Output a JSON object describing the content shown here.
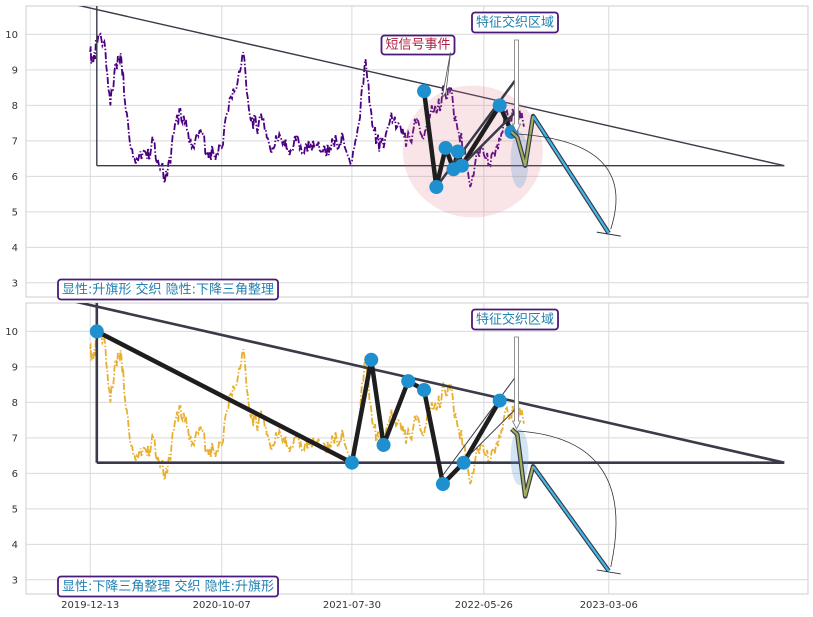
{
  "chart_data": [
    {
      "type": "line",
      "title": "",
      "ylim": [
        2.6,
        10.8
      ],
      "yticks": [
        3,
        4,
        5,
        6,
        7,
        8,
        9,
        10
      ],
      "series": [
        {
          "style": "dash-dot",
          "color": "#4b0082",
          "x": [
            "2019-12-13",
            "2019-12-20",
            "2020-01-01",
            "2020-01-14",
            "2020-01-28",
            "2020-02-10",
            "2020-02-22",
            "2020-03-05",
            "2020-03-20",
            "2020-04-05",
            "2020-04-20",
            "2020-05-05",
            "2020-05-20",
            "2020-06-05",
            "2020-06-20",
            "2020-07-05",
            "2020-07-20",
            "2020-08-05",
            "2020-08-20",
            "2020-09-05",
            "2020-09-20",
            "2020-10-07",
            "2020-10-25",
            "2020-11-10",
            "2020-11-25",
            "2020-12-10",
            "2020-12-25",
            "2021-01-10",
            "2021-01-25",
            "2021-02-10",
            "2021-02-25",
            "2021-03-10",
            "2021-03-25",
            "2021-04-10",
            "2021-04-25",
            "2021-05-10",
            "2021-05-25",
            "2021-06-10",
            "2021-06-25",
            "2021-07-10",
            "2021-07-30",
            "2021-08-15",
            "2021-08-30",
            "2021-09-12",
            "2021-09-25",
            "2021-10-10",
            "2021-10-25",
            "2021-11-10",
            "2021-11-25",
            "2021-12-10",
            "2021-12-25",
            "2022-01-10",
            "2022-01-25",
            "2022-02-10",
            "2022-02-25",
            "2022-03-10",
            "2022-03-25",
            "2022-04-10",
            "2022-04-25",
            "2022-05-10",
            "2022-05-26",
            "2022-06-10",
            "2022-06-25",
            "2022-07-10",
            "2022-07-25",
            "2022-08-10",
            "2022-08-25"
          ],
          "values": [
            9.5,
            9.2,
            10.0,
            9.8,
            8.0,
            9.2,
            9.3,
            7.8,
            6.5,
            6.7,
            6.5,
            7.0,
            6.2,
            6.0,
            7.2,
            7.9,
            7.3,
            6.8,
            7.3,
            6.7,
            6.6,
            6.8,
            8.2,
            8.5,
            9.5,
            7.7,
            7.4,
            7.6,
            6.8,
            7.0,
            7.0,
            6.6,
            7.0,
            6.7,
            6.8,
            6.9,
            6.7,
            6.8,
            7.0,
            7.1,
            6.4,
            7.5,
            9.3,
            7.8,
            7.0,
            6.8,
            7.6,
            7.4,
            7.1,
            7.0,
            7.6,
            7.1,
            7.8,
            7.9,
            8.4,
            8.4,
            7.5,
            6.8,
            5.7,
            6.7,
            6.6,
            6.3,
            6.9,
            7.5,
            7.7,
            7.9,
            7.4
          ]
        }
      ],
      "pattern_points": [
        [
          "2022-01-10",
          8.4
        ],
        [
          "2022-02-07",
          5.7
        ],
        [
          "2022-02-28",
          6.8
        ],
        [
          "2022-03-18",
          6.2
        ],
        [
          "2022-03-28",
          6.7
        ],
        [
          "2022-04-06",
          6.3
        ],
        [
          "2022-07-01",
          8.0
        ],
        [
          "2022-07-28",
          7.25
        ]
      ],
      "triangle": {
        "apex": [
          "2019-12-28",
          10.7
        ],
        "top_end": [
          "2024-04-08",
          6.3
        ],
        "base_start": [
          "2019-12-28",
          6.3
        ]
      },
      "forecast": [
        [
          "2022-07-28",
          7.25
        ],
        [
          "2022-08-10",
          7.1
        ],
        [
          "2022-08-28",
          6.3
        ],
        [
          "2022-09-15",
          7.7
        ],
        [
          "2023-03-06",
          4.4
        ]
      ],
      "annotations": [
        {
          "text": "短信号事件",
          "kind": "short-signal-event"
        },
        {
          "text": "特征交织区域",
          "kind": "feature-interleave-zone"
        },
        {
          "text": "显性:升旗形 交织 隐性:下降三角整理",
          "kind": "pattern-label"
        }
      ]
    },
    {
      "type": "line",
      "title": "",
      "ylim": [
        2.6,
        10.8
      ],
      "yticks": [
        3,
        4,
        5,
        6,
        7,
        8,
        9,
        10
      ],
      "xticks": [
        "2019-12-13",
        "2020-10-07",
        "2021-07-30",
        "2022-05-26",
        "2023-03-06"
      ],
      "series": [
        {
          "style": "dash-dot",
          "color": "#e8b030",
          "x": [
            "2019-12-13",
            "2019-12-20",
            "2020-01-01",
            "2020-01-14",
            "2020-01-28",
            "2020-02-10",
            "2020-02-22",
            "2020-03-05",
            "2020-03-20",
            "2020-04-05",
            "2020-04-20",
            "2020-05-05",
            "2020-05-20",
            "2020-06-05",
            "2020-06-20",
            "2020-07-05",
            "2020-07-20",
            "2020-08-05",
            "2020-08-20",
            "2020-09-05",
            "2020-09-20",
            "2020-10-07",
            "2020-10-25",
            "2020-11-10",
            "2020-11-25",
            "2020-12-10",
            "2020-12-25",
            "2021-01-10",
            "2021-01-25",
            "2021-02-10",
            "2021-02-25",
            "2021-03-10",
            "2021-03-25",
            "2021-04-10",
            "2021-04-25",
            "2021-05-10",
            "2021-05-25",
            "2021-06-10",
            "2021-06-25",
            "2021-07-10",
            "2021-07-30",
            "2021-08-15",
            "2021-08-30",
            "2021-09-12",
            "2021-09-25",
            "2021-10-10",
            "2021-10-25",
            "2021-11-10",
            "2021-11-25",
            "2021-12-10",
            "2021-12-25",
            "2022-01-10",
            "2022-01-25",
            "2022-02-10",
            "2022-02-25",
            "2022-03-10",
            "2022-03-25",
            "2022-04-10",
            "2022-04-25",
            "2022-05-10",
            "2022-05-26",
            "2022-06-10",
            "2022-06-25",
            "2022-07-10",
            "2022-07-25",
            "2022-08-10",
            "2022-08-25"
          ],
          "values": [
            9.5,
            9.2,
            10.0,
            9.8,
            8.0,
            9.2,
            9.3,
            7.8,
            6.5,
            6.7,
            6.5,
            7.0,
            6.2,
            6.0,
            7.2,
            7.9,
            7.3,
            6.8,
            7.3,
            6.7,
            6.6,
            6.8,
            8.2,
            8.5,
            9.5,
            7.7,
            7.4,
            7.6,
            6.8,
            7.0,
            7.0,
            6.6,
            7.0,
            6.7,
            6.8,
            6.9,
            6.7,
            6.8,
            7.0,
            7.1,
            6.4,
            7.5,
            9.3,
            7.8,
            7.0,
            6.8,
            7.6,
            7.4,
            7.1,
            7.0,
            7.6,
            7.1,
            7.8,
            7.9,
            8.4,
            8.4,
            7.5,
            6.8,
            5.7,
            6.7,
            6.6,
            6.3,
            6.9,
            7.5,
            7.7,
            7.9,
            7.4
          ]
        }
      ],
      "pattern_points": [
        [
          "2019-12-28",
          10.0
        ],
        [
          "2021-07-30",
          6.3
        ],
        [
          "2021-09-12",
          9.2
        ],
        [
          "2021-10-10",
          6.8
        ],
        [
          "2021-12-05",
          8.6
        ],
        [
          "2022-01-10",
          8.35
        ],
        [
          "2022-02-22",
          5.7
        ],
        [
          "2022-04-10",
          6.3
        ],
        [
          "2022-07-01",
          8.05
        ]
      ],
      "triangle": {
        "apex": [
          "2019-12-28",
          10.7
        ],
        "top_end": [
          "2024-04-08",
          6.3
        ],
        "base_start": [
          "2019-12-28",
          6.3
        ]
      },
      "forecast": [
        [
          "2022-07-28",
          7.25
        ],
        [
          "2022-08-10",
          7.1
        ],
        [
          "2022-08-28",
          5.35
        ],
        [
          "2022-09-15",
          6.2
        ],
        [
          "2023-03-06",
          3.25
        ]
      ],
      "annotations": [
        {
          "text": "特征交织区域",
          "kind": "feature-interleave-zone"
        },
        {
          "text": "显性:下降三角整理 交织 隐性:升旗形",
          "kind": "pattern-label"
        }
      ]
    }
  ]
}
